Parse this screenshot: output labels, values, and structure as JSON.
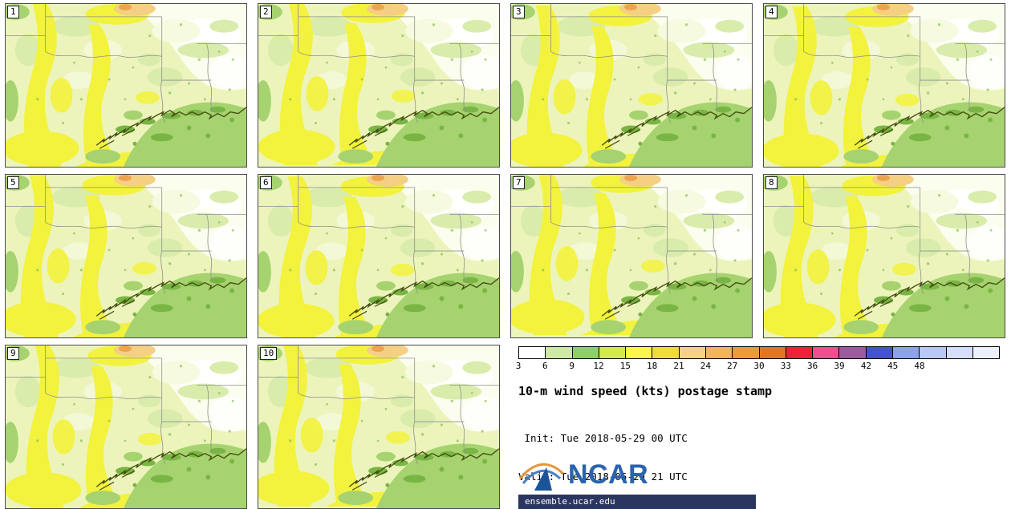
{
  "panels": [
    {
      "label": "1"
    },
    {
      "label": "2"
    },
    {
      "label": "3"
    },
    {
      "label": "4"
    },
    {
      "label": "5"
    },
    {
      "label": "6"
    },
    {
      "label": "7"
    },
    {
      "label": "8"
    },
    {
      "label": "9"
    },
    {
      "label": "10"
    }
  ],
  "legend": {
    "ticks": [
      "3",
      "6",
      "9",
      "12",
      "15",
      "18",
      "21",
      "24",
      "27",
      "30",
      "33",
      "36",
      "39",
      "42",
      "45",
      "48"
    ],
    "colors": [
      "#ffffff",
      "#cde9a5",
      "#8fd066",
      "#d3ea4d",
      "#fbf64a",
      "#eedd39",
      "#f6d288",
      "#f3b35f",
      "#ec9a3d",
      "#df7728",
      "#ee2139",
      "#ef4f8e",
      "#9c5b9e",
      "#4454cd",
      "#8ea2ea",
      "#b9c8f4",
      "#d7defa",
      "#edf0fd"
    ]
  },
  "title": "10-m wind speed (kts) postage stamp",
  "info": {
    "init_line": " Init: Tue 2018-05-29 00 UTC",
    "valid_line": "Valid: Tue 2018-05-29 21 UTC"
  },
  "branding": {
    "logo_text": "NCAR",
    "site": "ensemble.ucar.edu"
  }
}
